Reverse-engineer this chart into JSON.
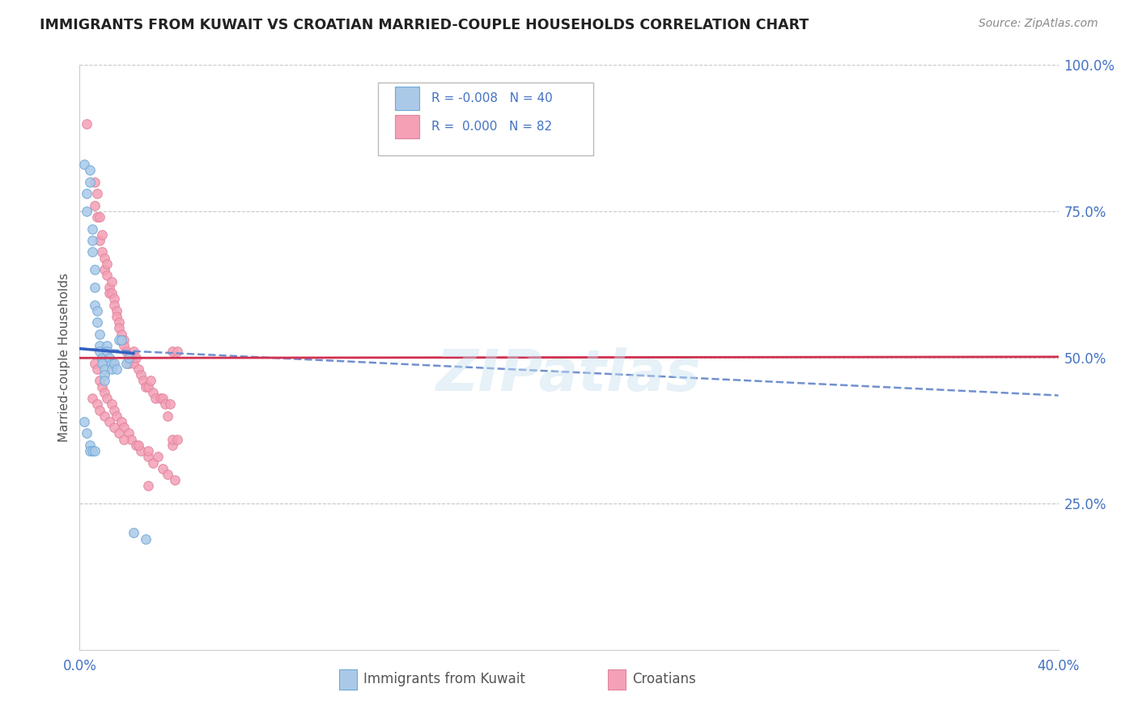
{
  "title": "IMMIGRANTS FROM KUWAIT VS CROATIAN MARRIED-COUPLE HOUSEHOLDS CORRELATION CHART",
  "source": "Source: ZipAtlas.com",
  "xmin": 0.0,
  "xmax": 0.4,
  "ymin": 0.0,
  "ymax": 1.0,
  "ytick_labels": [
    "100.0%",
    "75.0%",
    "50.0%",
    "25.0%"
  ],
  "ytick_values": [
    1.0,
    0.75,
    0.5,
    0.25
  ],
  "color_kuwait": "#aac9e8",
  "color_croatian": "#f4a0b5",
  "trendline_kuwait_solid_color": "#3060c0",
  "trendline_kuwait_dash_color": "#7090d0",
  "trendline_croatian_color": "#d03050",
  "scatter_size": 70,
  "kuwait_x": [
    0.002,
    0.003,
    0.003,
    0.004,
    0.004,
    0.005,
    0.005,
    0.005,
    0.006,
    0.006,
    0.006,
    0.007,
    0.007,
    0.008,
    0.008,
    0.008,
    0.009,
    0.009,
    0.01,
    0.01,
    0.01,
    0.011,
    0.011,
    0.012,
    0.013,
    0.013,
    0.014,
    0.015,
    0.016,
    0.017,
    0.019,
    0.02,
    0.002,
    0.003,
    0.004,
    0.004,
    0.005,
    0.006,
    0.022,
    0.027
  ],
  "kuwait_y": [
    0.83,
    0.78,
    0.75,
    0.82,
    0.8,
    0.72,
    0.7,
    0.68,
    0.65,
    0.62,
    0.59,
    0.58,
    0.56,
    0.54,
    0.52,
    0.51,
    0.5,
    0.49,
    0.48,
    0.47,
    0.46,
    0.52,
    0.51,
    0.5,
    0.49,
    0.48,
    0.49,
    0.48,
    0.53,
    0.53,
    0.49,
    0.5,
    0.39,
    0.37,
    0.35,
    0.34,
    0.34,
    0.34,
    0.2,
    0.19
  ],
  "croatian_x": [
    0.003,
    0.006,
    0.006,
    0.007,
    0.007,
    0.008,
    0.008,
    0.009,
    0.009,
    0.01,
    0.01,
    0.011,
    0.011,
    0.012,
    0.012,
    0.013,
    0.013,
    0.014,
    0.014,
    0.015,
    0.015,
    0.016,
    0.016,
    0.017,
    0.018,
    0.018,
    0.019,
    0.02,
    0.021,
    0.022,
    0.022,
    0.023,
    0.024,
    0.025,
    0.026,
    0.027,
    0.028,
    0.029,
    0.03,
    0.031,
    0.033,
    0.034,
    0.035,
    0.037,
    0.038,
    0.04,
    0.006,
    0.007,
    0.008,
    0.009,
    0.01,
    0.011,
    0.013,
    0.014,
    0.015,
    0.017,
    0.018,
    0.02,
    0.021,
    0.023,
    0.025,
    0.028,
    0.03,
    0.034,
    0.036,
    0.039,
    0.005,
    0.007,
    0.008,
    0.01,
    0.012,
    0.014,
    0.016,
    0.018,
    0.024,
    0.028,
    0.032,
    0.038,
    0.036,
    0.028,
    0.038,
    0.04
  ],
  "croatian_y": [
    0.9,
    0.8,
    0.76,
    0.78,
    0.74,
    0.74,
    0.7,
    0.71,
    0.68,
    0.67,
    0.65,
    0.66,
    0.64,
    0.62,
    0.61,
    0.63,
    0.61,
    0.6,
    0.59,
    0.58,
    0.57,
    0.56,
    0.55,
    0.54,
    0.53,
    0.52,
    0.51,
    0.49,
    0.5,
    0.51,
    0.49,
    0.5,
    0.48,
    0.47,
    0.46,
    0.45,
    0.45,
    0.46,
    0.44,
    0.43,
    0.43,
    0.43,
    0.42,
    0.42,
    0.51,
    0.51,
    0.49,
    0.48,
    0.46,
    0.45,
    0.44,
    0.43,
    0.42,
    0.41,
    0.4,
    0.39,
    0.38,
    0.37,
    0.36,
    0.35,
    0.34,
    0.33,
    0.32,
    0.31,
    0.3,
    0.29,
    0.43,
    0.42,
    0.41,
    0.4,
    0.39,
    0.38,
    0.37,
    0.36,
    0.35,
    0.34,
    0.33,
    0.35,
    0.4,
    0.28,
    0.36,
    0.36
  ]
}
